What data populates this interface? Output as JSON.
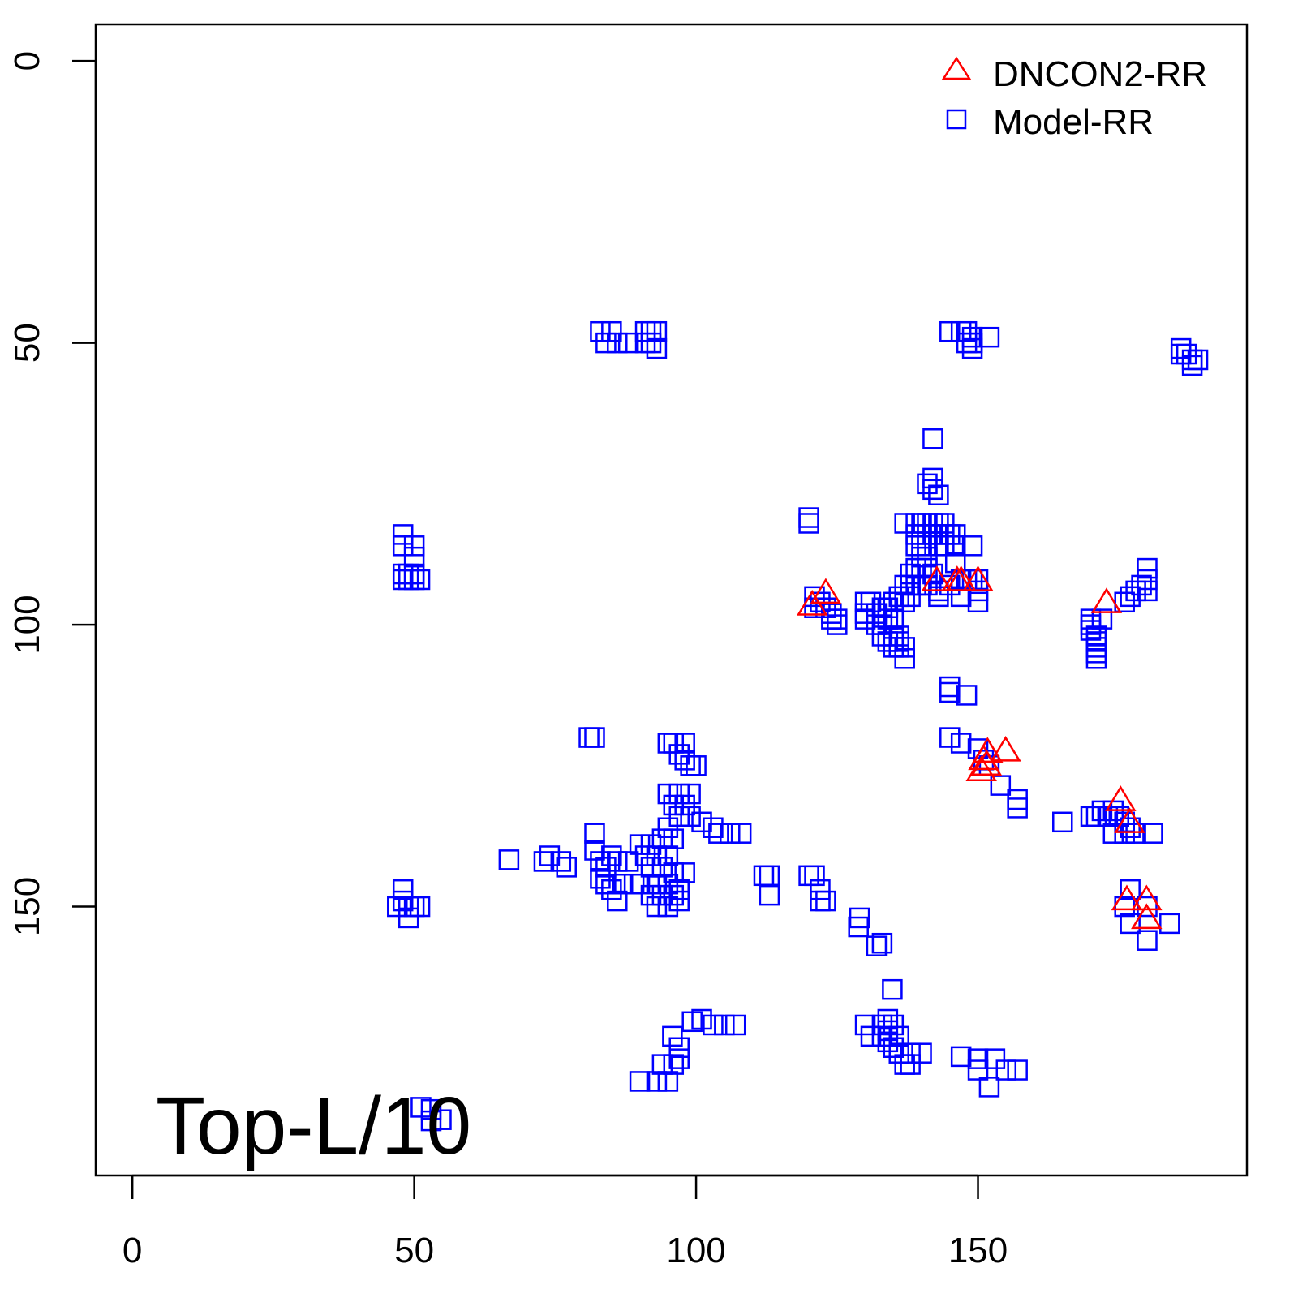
{
  "chart_data": {
    "type": "scatter",
    "title": "",
    "annotation": "Top-L/10",
    "xlabel": "",
    "ylabel": "",
    "xlim": [
      -6.5,
      197.7
    ],
    "ylim": [
      197.7,
      -6.5
    ],
    "xticks": [
      "0",
      "50",
      "100",
      "150"
    ],
    "yticks": [
      "0",
      "50",
      "100",
      "150"
    ],
    "xtick_values": [
      0,
      50,
      100,
      150
    ],
    "ytick_values": [
      0,
      50,
      100,
      150
    ],
    "grid": false,
    "legend_position": "top-right",
    "series": [
      {
        "name": "DNCON2-RR",
        "marker": "triangle",
        "color": "#FF0000",
        "points": [
          [
            120.6,
            96.6
          ],
          [
            123,
            94.5
          ],
          [
            142.7,
            92.3
          ],
          [
            146.3,
            92.3
          ],
          [
            147,
            92.3
          ],
          [
            150,
            92.3
          ],
          [
            172.8,
            96.2
          ],
          [
            151.7,
            122.7
          ],
          [
            154.9,
            122.5
          ],
          [
            151,
            124
          ],
          [
            150.6,
            126
          ],
          [
            151.5,
            125
          ],
          [
            175.3,
            131.3
          ],
          [
            176.9,
            135.2
          ],
          [
            176.4,
            148.9
          ],
          [
            179.9,
            148.9
          ],
          [
            179.9,
            152.2
          ]
        ]
      },
      {
        "name": "Model-RR",
        "marker": "square",
        "color": "#0000FF",
        "points": [
          [
            83,
            48
          ],
          [
            84,
            50
          ],
          [
            85,
            48
          ],
          [
            86,
            50
          ],
          [
            88,
            50
          ],
          [
            91,
            48
          ],
          [
            92,
            48
          ],
          [
            93,
            48
          ],
          [
            92,
            50
          ],
          [
            93,
            51
          ],
          [
            91,
            50
          ],
          [
            145,
            48
          ],
          [
            147,
            48
          ],
          [
            148,
            48
          ],
          [
            149,
            49
          ],
          [
            149,
            50
          ],
          [
            148,
            50
          ],
          [
            152,
            49
          ],
          [
            149,
            51
          ],
          [
            186,
            51
          ],
          [
            186,
            52
          ],
          [
            187,
            52
          ],
          [
            188,
            53
          ],
          [
            189,
            53
          ],
          [
            188,
            54
          ],
          [
            48,
            84
          ],
          [
            48,
            86
          ],
          [
            50,
            86
          ],
          [
            50,
            88
          ],
          [
            48,
            91
          ],
          [
            48,
            92
          ],
          [
            49,
            91
          ],
          [
            50,
            92
          ],
          [
            51,
            92
          ],
          [
            49,
            92
          ],
          [
            50,
            91
          ],
          [
            120,
            81
          ],
          [
            120,
            82
          ],
          [
            142,
            67
          ],
          [
            142,
            74
          ],
          [
            142,
            76
          ],
          [
            143,
            77
          ],
          [
            141,
            75
          ],
          [
            137,
            82
          ],
          [
            139,
            82
          ],
          [
            140,
            82
          ],
          [
            141,
            82
          ],
          [
            142,
            82
          ],
          [
            143,
            82
          ],
          [
            144,
            82
          ],
          [
            139,
            84
          ],
          [
            140,
            84
          ],
          [
            141,
            84
          ],
          [
            142,
            84
          ],
          [
            143,
            84
          ],
          [
            144,
            84
          ],
          [
            145,
            84
          ],
          [
            146,
            84
          ],
          [
            139,
            86
          ],
          [
            140,
            86
          ],
          [
            141,
            86
          ],
          [
            143,
            86
          ],
          [
            144,
            86
          ],
          [
            146,
            86
          ],
          [
            149,
            86
          ],
          [
            140,
            88
          ],
          [
            141,
            88
          ],
          [
            146,
            89
          ],
          [
            139,
            90
          ],
          [
            140,
            90
          ],
          [
            141,
            90
          ],
          [
            142,
            91
          ],
          [
            138,
            91
          ],
          [
            137,
            93
          ],
          [
            138,
            93
          ],
          [
            139,
            93
          ],
          [
            140,
            93
          ],
          [
            141,
            93
          ],
          [
            143,
            94
          ],
          [
            145,
            93
          ],
          [
            147,
            92
          ],
          [
            148,
            92
          ],
          [
            149,
            92
          ],
          [
            150,
            92
          ],
          [
            150,
            94
          ],
          [
            150,
            96
          ],
          [
            147,
            95
          ],
          [
            143,
            95
          ],
          [
            136,
            95
          ],
          [
            137,
            96
          ],
          [
            138,
            95
          ],
          [
            135,
            96
          ],
          [
            134,
            97
          ],
          [
            133,
            97
          ],
          [
            132,
            98
          ],
          [
            131,
            96
          ],
          [
            130,
            96
          ],
          [
            130,
            98
          ],
          [
            130,
            99
          ],
          [
            132,
            100
          ],
          [
            133,
            100
          ],
          [
            134,
            99
          ],
          [
            135,
            99
          ],
          [
            133,
            102
          ],
          [
            134,
            103
          ],
          [
            135,
            102
          ],
          [
            136,
            103
          ],
          [
            136,
            104
          ],
          [
            137,
            104
          ],
          [
            137,
            106
          ],
          [
            136,
            102
          ],
          [
            135,
            104
          ],
          [
            121,
            95
          ],
          [
            121,
            97
          ],
          [
            122,
            96
          ],
          [
            123,
            97
          ],
          [
            124,
            98
          ],
          [
            124,
            99
          ],
          [
            125,
            99
          ],
          [
            125,
            100
          ],
          [
            170,
            99
          ],
          [
            170,
            100
          ],
          [
            170,
            101
          ],
          [
            171,
            102
          ],
          [
            171,
            103
          ],
          [
            171,
            104
          ],
          [
            171,
            105
          ],
          [
            171,
            106
          ],
          [
            172,
            99
          ],
          [
            176,
            96
          ],
          [
            177,
            95
          ],
          [
            178,
            94
          ],
          [
            179,
            93
          ],
          [
            180,
            90
          ],
          [
            180,
            94
          ],
          [
            180,
            92
          ],
          [
            145,
            111
          ],
          [
            145,
            112
          ],
          [
            148,
            112.5
          ],
          [
            145,
            120
          ],
          [
            147,
            121
          ],
          [
            150,
            122
          ],
          [
            151,
            124
          ],
          [
            152,
            125
          ],
          [
            154,
            128.5
          ],
          [
            157,
            131
          ],
          [
            157,
            132.5
          ],
          [
            165,
            135
          ],
          [
            170,
            134
          ],
          [
            171,
            134
          ],
          [
            172,
            133
          ],
          [
            173,
            134
          ],
          [
            174,
            133
          ],
          [
            175,
            134
          ],
          [
            176,
            135
          ],
          [
            177,
            136
          ],
          [
            178,
            137
          ],
          [
            181,
            137
          ],
          [
            174,
            137
          ],
          [
            176,
            137
          ],
          [
            177,
            147
          ],
          [
            177,
            153
          ],
          [
            180,
            156
          ],
          [
            180,
            150
          ],
          [
            184,
            153
          ],
          [
            176,
            150
          ],
          [
            81,
            120
          ],
          [
            82,
            120
          ],
          [
            95,
            121
          ],
          [
            96,
            121
          ],
          [
            98,
            121
          ],
          [
            97,
            123
          ],
          [
            98,
            124
          ],
          [
            99,
            125
          ],
          [
            100,
            125
          ],
          [
            95,
            130
          ],
          [
            97,
            130
          ],
          [
            99,
            130
          ],
          [
            96,
            132
          ],
          [
            98,
            132
          ],
          [
            97,
            134
          ],
          [
            99,
            134
          ],
          [
            101,
            135
          ],
          [
            103,
            136
          ],
          [
            104,
            137
          ],
          [
            106,
            137
          ],
          [
            108,
            137
          ],
          [
            95,
            136
          ],
          [
            94,
            138
          ],
          [
            96,
            138
          ],
          [
            92,
            139
          ],
          [
            90,
            139
          ],
          [
            91,
            141
          ],
          [
            93,
            141
          ],
          [
            95,
            141
          ],
          [
            92,
            143
          ],
          [
            94,
            143
          ],
          [
            96,
            144
          ],
          [
            98,
            144
          ],
          [
            93,
            146
          ],
          [
            95,
            146
          ],
          [
            97,
            147
          ],
          [
            92,
            148
          ],
          [
            94,
            148
          ],
          [
            96,
            148
          ],
          [
            93,
            150
          ],
          [
            95,
            150
          ],
          [
            97,
            149
          ],
          [
            90,
            146
          ],
          [
            82,
            137
          ],
          [
            82,
            140
          ],
          [
            83,
            142
          ],
          [
            84,
            143
          ],
          [
            85,
            141
          ],
          [
            86,
            142
          ],
          [
            88,
            142
          ],
          [
            83,
            145
          ],
          [
            84,
            146
          ],
          [
            85,
            147
          ],
          [
            86,
            149
          ],
          [
            87,
            146
          ],
          [
            89,
            146
          ],
          [
            66.8,
            141.7
          ],
          [
            73,
            142
          ],
          [
            74,
            141
          ],
          [
            76,
            142
          ],
          [
            77,
            143
          ],
          [
            48,
            147
          ],
          [
            48,
            149
          ],
          [
            47,
            150
          ],
          [
            49,
            150
          ],
          [
            50,
            150
          ],
          [
            51,
            150
          ],
          [
            49,
            152
          ],
          [
            112,
            144.5
          ],
          [
            113,
            144.5
          ],
          [
            113,
            148
          ],
          [
            120,
            144.5
          ],
          [
            121,
            144.5
          ],
          [
            122,
            147
          ],
          [
            122,
            149
          ],
          [
            123,
            149
          ],
          [
            128.8,
            153.6
          ],
          [
            129,
            152
          ],
          [
            132,
            157
          ],
          [
            133,
            156.5
          ],
          [
            134.8,
            164.7
          ],
          [
            130,
            171
          ],
          [
            131,
            173
          ],
          [
            133,
            171
          ],
          [
            133,
            173
          ],
          [
            134,
            170
          ],
          [
            134,
            172
          ],
          [
            134,
            174
          ],
          [
            135,
            171
          ],
          [
            135,
            175
          ],
          [
            136,
            173
          ],
          [
            136,
            176
          ],
          [
            138,
            176
          ],
          [
            138,
            178
          ],
          [
            140,
            176
          ],
          [
            137,
            178
          ],
          [
            147,
            176.6
          ],
          [
            150,
            177
          ],
          [
            150,
            179
          ],
          [
            153,
            177
          ],
          [
            155,
            179
          ],
          [
            152,
            182
          ],
          [
            157,
            179
          ],
          [
            90,
            181
          ],
          [
            93,
            181
          ],
          [
            95,
            181
          ],
          [
            94,
            178
          ],
          [
            96,
            178
          ],
          [
            97,
            177
          ],
          [
            97,
            175
          ],
          [
            95.8,
            173
          ],
          [
            99.3,
            170.4
          ],
          [
            101,
            170
          ],
          [
            103,
            171
          ],
          [
            105,
            171
          ],
          [
            107,
            171
          ],
          [
            51.2,
            185.6
          ],
          [
            53,
            186
          ],
          [
            53,
            188
          ],
          [
            54.8,
            187.8
          ]
        ]
      }
    ]
  }
}
